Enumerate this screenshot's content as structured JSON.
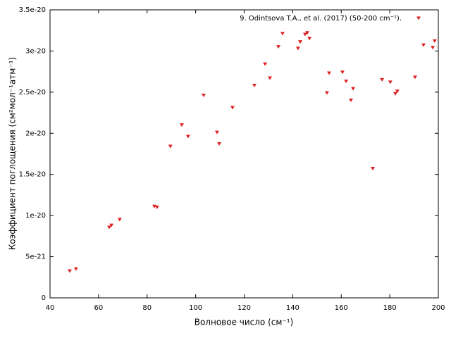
{
  "chart_data": {
    "type": "scatter",
    "xlabel": "Волновое число (см⁻¹)",
    "ylabel": "Коэффициент поглощения (см²мол⁻¹атм⁻¹)",
    "xlim": [
      40,
      200
    ],
    "xticks": [
      40,
      60,
      80,
      100,
      120,
      140,
      160,
      180,
      200
    ],
    "ylim": [
      0,
      3.5e-20
    ],
    "yticks": [
      0,
      5e-21,
      1e-20,
      1.5e-20,
      2e-20,
      2.5e-20,
      3e-20,
      3.5e-20
    ],
    "legend": "top-right",
    "x": [
      48.1,
      50.7,
      64.4,
      65.3,
      68.7,
      83.0,
      84.1,
      89.6,
      94.3,
      96.9,
      103.3,
      108.8,
      109.7,
      115.2,
      124.2,
      128.6,
      130.6,
      134.1,
      135.8,
      142.2,
      143.1,
      145.1,
      146.0,
      146.9,
      154.1,
      155.0,
      160.5,
      162.0,
      164.0,
      164.9,
      173.0,
      176.8,
      180.2,
      182.3,
      183.1,
      190.4,
      193.9,
      197.7,
      198.5
    ],
    "series": [
      {
        "name": "9. Odintsova T.A., et al. (2017) (50-200 cm⁻¹).",
        "color": "#e02020",
        "values": [
          3.25e-21,
          3.5e-21,
          8.56e-21,
          8.8e-21,
          9.5e-21,
          1.11e-20,
          1.1e-20,
          1.84e-20,
          2.1e-20,
          1.96e-20,
          2.46e-20,
          2.01e-20,
          1.87e-20,
          2.31e-20,
          2.58e-20,
          2.84e-20,
          2.67e-20,
          3.05e-20,
          3.21e-20,
          3.03e-20,
          3.11e-20,
          3.2e-20,
          3.22e-20,
          3.15e-20,
          2.49e-20,
          2.73e-20,
          2.74e-20,
          2.63e-20,
          2.4e-20,
          2.54e-20,
          1.57e-20,
          2.65e-20,
          2.62e-20,
          2.48e-20,
          2.51e-20,
          2.68e-20,
          3.07e-20,
          3.04e-20,
          3.12e-20
        ]
      }
    ]
  }
}
